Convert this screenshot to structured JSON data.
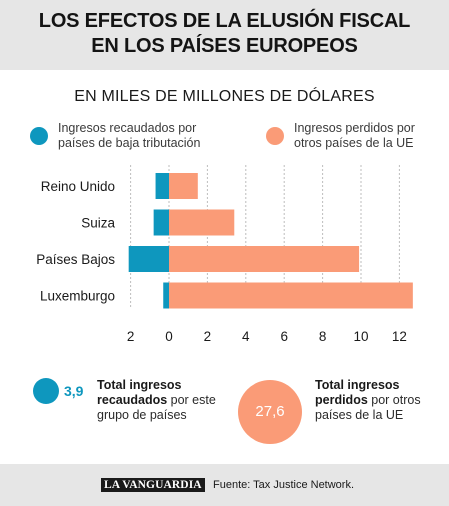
{
  "title": {
    "line1": "LOS EFECTOS DE LA ELUSIÓN FISCAL",
    "line2": "EN LOS PAÍSES EUROPEOS"
  },
  "subtitle": "EN MILES DE MILLONES DE DÓLARES",
  "legend": {
    "collected": {
      "line1": "Ingresos recaudados por",
      "line2": "países de baja tributación",
      "color": "#0e97be"
    },
    "lost": {
      "line1": "Ingresos perdidos por",
      "line2": "otros países de la UE",
      "color": "#fa9b77"
    }
  },
  "chart_data": {
    "type": "bar",
    "orientation": "horizontal",
    "categories": [
      "Reino Unido",
      "Suiza",
      "Países Bajos",
      "Luxemburgo"
    ],
    "series": [
      {
        "name": "Ingresos recaudados por países de baja tributación",
        "values": [
          0.7,
          0.8,
          2.1,
          0.3
        ],
        "direction": "left",
        "color": "#0e97be"
      },
      {
        "name": "Ingresos perdidos por otros países de la UE",
        "values": [
          1.5,
          3.4,
          9.9,
          12.7
        ],
        "direction": "right",
        "color": "#fa9b77"
      }
    ],
    "xticks": [
      "2",
      "0",
      "2",
      "4",
      "6",
      "8",
      "10",
      "12"
    ],
    "xtick_values": [
      -2,
      0,
      2,
      4,
      6,
      8,
      10,
      12
    ],
    "xlim": [
      -2,
      13
    ],
    "grid": "vertical-dotted"
  },
  "summary": {
    "collected": {
      "value": "3,9",
      "bold": "Total ingresos recaudados",
      "rest": " por este grupo de países"
    },
    "lost": {
      "value": "27,6",
      "bold": "Total ingresos perdidos",
      "rest": " por otros países de la UE"
    }
  },
  "footer": {
    "logo": "LA VANGUARDIA",
    "source": "Fuente: Tax Justice Network."
  }
}
